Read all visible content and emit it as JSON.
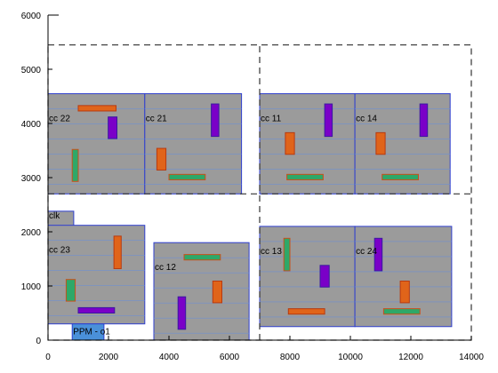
{
  "chart_data": {
    "type": "layout-plot",
    "title": "",
    "xlabel": "",
    "ylabel": "",
    "xlim": [
      0,
      14000
    ],
    "ylim": [
      0,
      6000
    ],
    "x_ticks": [
      0,
      2000,
      4000,
      6000,
      8000,
      10000,
      12000,
      14000
    ],
    "y_ticks": [
      0,
      1000,
      2000,
      3000,
      4000,
      5000,
      6000
    ],
    "colors": {
      "block_fill": "#9b9b9b",
      "block_stroke": "#2f3fcf",
      "row_line": "#6f8fd0",
      "orange": "#e0641a",
      "green": "#2ea868",
      "purple": "#7a00c8",
      "ppm_fill": "#4a90d9",
      "outline": "#333333"
    },
    "outline": {
      "x0": 0,
      "y0": 0,
      "x1": 14000,
      "y1": 5450,
      "style": "dashed"
    },
    "dividers": [
      {
        "x0": 7000,
        "y0": 0,
        "x1": 7000,
        "y1": 5450,
        "style": "dashed"
      },
      {
        "x0": 0,
        "y0": 2700,
        "x1": 14000,
        "y1": 2700,
        "style": "dashed"
      }
    ],
    "blocks": [
      {
        "label": "cc 22",
        "x0": 0,
        "y0": 2700,
        "x1": 3200,
        "y1": 4550
      },
      {
        "label": "cc 21",
        "x0": 3200,
        "y0": 2700,
        "x1": 6400,
        "y1": 4550
      },
      {
        "label": "cc 11",
        "x0": 7000,
        "y0": 2700,
        "x1": 10150,
        "y1": 4550
      },
      {
        "label": "cc 14",
        "x0": 10150,
        "y0": 2700,
        "x1": 13300,
        "y1": 4550
      },
      {
        "label": "clk",
        "x0": 0,
        "y0": 2100,
        "x1": 850,
        "y1": 2380
      },
      {
        "label": "cc 23",
        "x0": 0,
        "y0": 300,
        "x1": 3200,
        "y1": 2120
      },
      {
        "label": "cc 12",
        "x0": 3500,
        "y0": 0,
        "x1": 6650,
        "y1": 1800
      },
      {
        "label": "cc 13",
        "x0": 7000,
        "y0": 250,
        "x1": 10150,
        "y1": 2100
      },
      {
        "label": "cc 24",
        "x0": 10150,
        "y0": 250,
        "x1": 13350,
        "y1": 2100
      },
      {
        "label": "PPM - ο1",
        "x0": 800,
        "y0": 0,
        "x1": 1850,
        "y1": 300
      }
    ],
    "cells": [
      {
        "color": "orange",
        "x0": 1000,
        "y0": 4230,
        "x1": 2250,
        "y1": 4330
      },
      {
        "color": "purple",
        "x0": 1990,
        "y0": 3720,
        "x1": 2280,
        "y1": 4120
      },
      {
        "color": "green",
        "x0": 800,
        "y0": 2930,
        "x1": 1000,
        "y1": 3520
      },
      {
        "color": "purple",
        "x0": 5400,
        "y0": 3760,
        "x1": 5650,
        "y1": 4360
      },
      {
        "color": "orange",
        "x0": 3600,
        "y0": 3140,
        "x1": 3900,
        "y1": 3540
      },
      {
        "color": "green",
        "x0": 4000,
        "y0": 2960,
        "x1": 5200,
        "y1": 3060
      },
      {
        "color": "orange",
        "x0": 7850,
        "y0": 3430,
        "x1": 8150,
        "y1": 3830
      },
      {
        "color": "purple",
        "x0": 9150,
        "y0": 3760,
        "x1": 9400,
        "y1": 4360
      },
      {
        "color": "green",
        "x0": 7900,
        "y0": 2960,
        "x1": 9100,
        "y1": 3060
      },
      {
        "color": "orange",
        "x0": 10850,
        "y0": 3430,
        "x1": 11150,
        "y1": 3830
      },
      {
        "color": "purple",
        "x0": 12300,
        "y0": 3760,
        "x1": 12550,
        "y1": 4360
      },
      {
        "color": "green",
        "x0": 11050,
        "y0": 2960,
        "x1": 12250,
        "y1": 3060
      },
      {
        "color": "orange",
        "x0": 2180,
        "y0": 1320,
        "x1": 2420,
        "y1": 1920
      },
      {
        "color": "green",
        "x0": 600,
        "y0": 720,
        "x1": 900,
        "y1": 1120
      },
      {
        "color": "purple",
        "x0": 1000,
        "y0": 500,
        "x1": 2200,
        "y1": 600
      },
      {
        "color": "green",
        "x0": 4500,
        "y0": 1480,
        "x1": 5700,
        "y1": 1580
      },
      {
        "color": "orange",
        "x0": 5450,
        "y0": 690,
        "x1": 5750,
        "y1": 1090
      },
      {
        "color": "purple",
        "x0": 4300,
        "y0": 200,
        "x1": 4550,
        "y1": 800
      },
      {
        "color": "green",
        "x0": 7800,
        "y0": 1280,
        "x1": 8000,
        "y1": 1880
      },
      {
        "color": "purple",
        "x0": 9000,
        "y0": 980,
        "x1": 9300,
        "y1": 1380
      },
      {
        "color": "orange",
        "x0": 7950,
        "y0": 480,
        "x1": 9150,
        "y1": 580
      },
      {
        "color": "purple",
        "x0": 10800,
        "y0": 1280,
        "x1": 11050,
        "y1": 1880
      },
      {
        "color": "orange",
        "x0": 11650,
        "y0": 690,
        "x1": 11950,
        "y1": 1090
      },
      {
        "color": "green",
        "x0": 11100,
        "y0": 480,
        "x1": 12300,
        "y1": 580
      }
    ]
  }
}
